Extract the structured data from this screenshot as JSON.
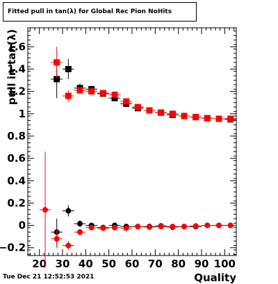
{
  "title": "Fitted pull in tan(λ) for Global Rec Pion NoHits",
  "timestamp": "Tue Dec 21 12:52:53 2021",
  "chart_data": {
    "type": "scatter",
    "title": "Fitted pull in tan(λ) for Global Rec Pion NoHits",
    "xlabel": "Quality",
    "ylabel": "pull in tan(λ)",
    "xlim": [
      15,
      105
    ],
    "ylim": [
      -0.27,
      1.77
    ],
    "xticks": [
      20,
      30,
      40,
      50,
      60,
      70,
      80,
      90,
      100
    ],
    "yticks": [
      -0.2,
      0,
      0.2,
      0.4,
      0.6,
      0.8,
      1,
      1.2,
      1.4,
      1.6
    ],
    "ytick_labels": [
      "−0.2",
      "0",
      "0.2",
      "0.4",
      "0.6",
      "0.8",
      "1",
      "1.2",
      "1.4",
      "1.6"
    ],
    "series": [
      {
        "color": "#000000",
        "marker": "square",
        "points": [
          {
            "x": 27.5,
            "y": 1.31,
            "err": 0.17
          },
          {
            "x": 32.5,
            "y": 1.4,
            "err": 0.09
          },
          {
            "x": 37.5,
            "y": 1.23,
            "err": 0.04
          },
          {
            "x": 42.5,
            "y": 1.22,
            "err": 0.03
          },
          {
            "x": 47.5,
            "y": 1.18,
            "err": 0.02
          },
          {
            "x": 52.5,
            "y": 1.14,
            "err": 0.02
          },
          {
            "x": 57.5,
            "y": 1.09,
            "err": 0.02
          },
          {
            "x": 62.5,
            "y": 1.05,
            "err": 0.015
          },
          {
            "x": 67.5,
            "y": 1.03,
            "err": 0.015
          },
          {
            "x": 72.5,
            "y": 1.01,
            "err": 0.01
          },
          {
            "x": 77.5,
            "y": 0.99,
            "err": 0.01
          },
          {
            "x": 82.5,
            "y": 0.98,
            "err": 0.01
          },
          {
            "x": 87.5,
            "y": 0.97,
            "err": 0.01
          },
          {
            "x": 92.5,
            "y": 0.96,
            "err": 0.01
          },
          {
            "x": 97.5,
            "y": 0.955,
            "err": 0.01
          },
          {
            "x": 102.5,
            "y": 0.95,
            "err": 0.01
          }
        ]
      },
      {
        "color": "#ff0000",
        "marker": "square",
        "points": [
          {
            "x": 27.5,
            "y": 1.46,
            "err": 0.14
          },
          {
            "x": 32.5,
            "y": 1.16,
            "err": 0.05
          },
          {
            "x": 37.5,
            "y": 1.21,
            "err": 0.03
          },
          {
            "x": 42.5,
            "y": 1.2,
            "err": 0.02
          },
          {
            "x": 47.5,
            "y": 1.185,
            "err": 0.02
          },
          {
            "x": 52.5,
            "y": 1.17,
            "err": 0.02
          },
          {
            "x": 57.5,
            "y": 1.11,
            "err": 0.02
          },
          {
            "x": 62.5,
            "y": 1.06,
            "err": 0.015
          },
          {
            "x": 67.5,
            "y": 1.03,
            "err": 0.015
          },
          {
            "x": 72.5,
            "y": 1.01,
            "err": 0.01
          },
          {
            "x": 77.5,
            "y": 1.0,
            "err": 0.01
          },
          {
            "x": 82.5,
            "y": 0.98,
            "err": 0.01
          },
          {
            "x": 87.5,
            "y": 0.97,
            "err": 0.01
          },
          {
            "x": 92.5,
            "y": 0.96,
            "err": 0.01
          },
          {
            "x": 97.5,
            "y": 0.955,
            "err": 0.01
          },
          {
            "x": 102.5,
            "y": 0.955,
            "err": 0.01
          }
        ]
      },
      {
        "color": "#000000",
        "marker": "circle",
        "points": [
          {
            "x": 27.5,
            "y": -0.06,
            "err": 0.12
          },
          {
            "x": 32.5,
            "y": 0.13,
            "err": 0.05
          },
          {
            "x": 37.5,
            "y": 0.015,
            "err": 0.03
          },
          {
            "x": 42.5,
            "y": 0.0,
            "err": 0.02
          },
          {
            "x": 47.5,
            "y": -0.02,
            "err": 0.015
          },
          {
            "x": 52.5,
            "y": 0.0,
            "err": 0.015
          },
          {
            "x": 57.5,
            "y": -0.01,
            "err": 0.015
          },
          {
            "x": 62.5,
            "y": -0.01,
            "err": 0.01
          },
          {
            "x": 67.5,
            "y": -0.01,
            "err": 0.01
          },
          {
            "x": 72.5,
            "y": -0.005,
            "err": 0.01
          },
          {
            "x": 77.5,
            "y": -0.015,
            "err": 0.01
          },
          {
            "x": 82.5,
            "y": -0.01,
            "err": 0.01
          },
          {
            "x": 87.5,
            "y": -0.01,
            "err": 0.01
          },
          {
            "x": 92.5,
            "y": 0.0,
            "err": 0.01
          },
          {
            "x": 97.5,
            "y": 0.0,
            "err": 0.01
          },
          {
            "x": 102.5,
            "y": 0.0,
            "err": 0.01
          }
        ]
      },
      {
        "color": "#ff0000",
        "marker": "circle",
        "points": [
          {
            "x": 22.5,
            "y": 0.14,
            "err": 0.52
          },
          {
            "x": 27.5,
            "y": -0.12,
            "err": 0.08
          },
          {
            "x": 32.5,
            "y": -0.18,
            "err": 0.04
          },
          {
            "x": 37.5,
            "y": -0.06,
            "err": 0.03
          },
          {
            "x": 42.5,
            "y": -0.02,
            "err": 0.02
          },
          {
            "x": 47.5,
            "y": -0.025,
            "err": 0.015
          },
          {
            "x": 52.5,
            "y": -0.02,
            "err": 0.015
          },
          {
            "x": 57.5,
            "y": -0.025,
            "err": 0.015
          },
          {
            "x": 62.5,
            "y": -0.01,
            "err": 0.01
          },
          {
            "x": 67.5,
            "y": -0.015,
            "err": 0.01
          },
          {
            "x": 72.5,
            "y": -0.01,
            "err": 0.01
          },
          {
            "x": 77.5,
            "y": -0.01,
            "err": 0.01
          },
          {
            "x": 82.5,
            "y": -0.01,
            "err": 0.01
          },
          {
            "x": 87.5,
            "y": -0.005,
            "err": 0.01
          },
          {
            "x": 92.5,
            "y": 0.0,
            "err": 0.01
          },
          {
            "x": 97.5,
            "y": 0.0,
            "err": 0.01
          },
          {
            "x": 102.5,
            "y": 0.0,
            "err": 0.01
          }
        ]
      }
    ]
  }
}
